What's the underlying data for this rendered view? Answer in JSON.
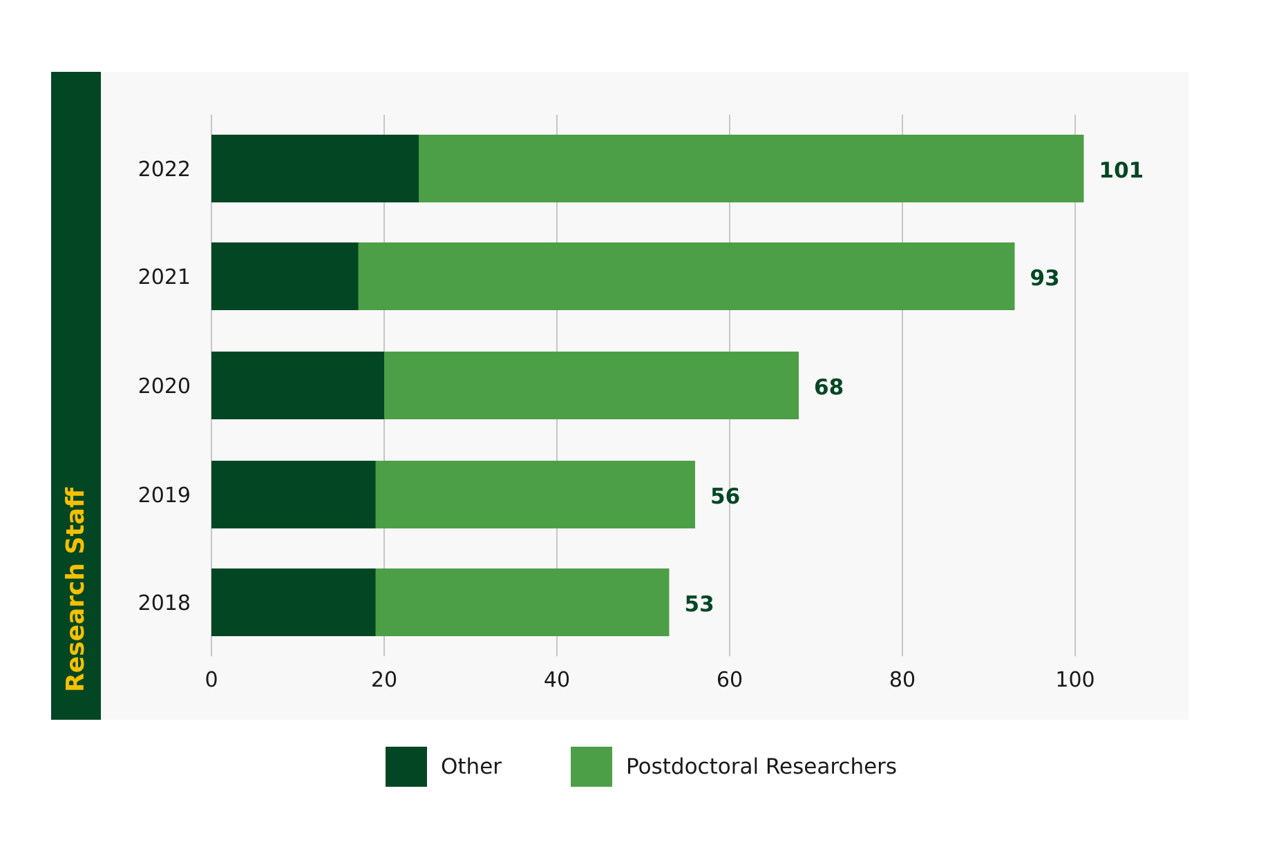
{
  "side_label": "Research Staff",
  "colors": {
    "band": "#024624",
    "band_text": "#f5c000",
    "panel": "#f8f8f8",
    "grid": "#b5b5b5",
    "total_label": "#024624",
    "tick_text": "#1a1a1a"
  },
  "chart_data": {
    "type": "bar",
    "orientation": "horizontal",
    "stacked": true,
    "categories": [
      "2022",
      "2021",
      "2020",
      "2019",
      "2018"
    ],
    "series": [
      {
        "name": "Other",
        "color": "#024624",
        "values": [
          24,
          17,
          20,
          19,
          19
        ]
      },
      {
        "name": "Postdoctoral Researchers",
        "color": "#4c9f46",
        "values": [
          77,
          76,
          48,
          37,
          34
        ]
      }
    ],
    "totals": [
      101,
      93,
      68,
      56,
      53
    ],
    "xticks": [
      0,
      20,
      40,
      60,
      80,
      100
    ],
    "xlim": [
      0,
      110
    ],
    "grid": true,
    "legend_position": "bottom"
  }
}
